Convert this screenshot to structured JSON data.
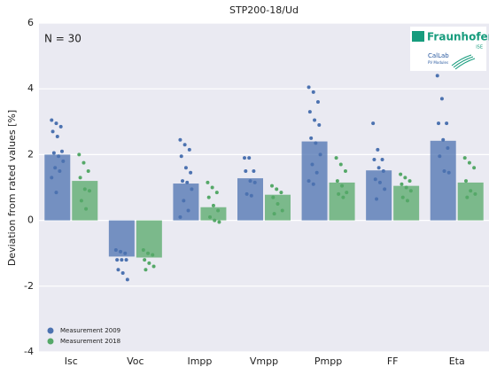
{
  "chart_data": {
    "type": "bar",
    "title": "STP200-18/Ud",
    "y_label": "Deviation from rated values [%]",
    "annotation": "N = 30",
    "logo": {
      "name": "Fraunhofer",
      "sub": "ISE",
      "lab": "CalLab",
      "lab_sub": "PV Modules"
    },
    "categories": [
      "Isc",
      "Voc",
      "Impp",
      "Vmpp",
      "Pmpp",
      "FF",
      "Eta"
    ],
    "ylim": [
      -4,
      6
    ],
    "yticks": [
      -4,
      -2,
      0,
      2,
      4,
      6
    ],
    "grid": true,
    "legend": "lower left",
    "series": [
      {
        "name": "Measurement 2009",
        "color": "#4c72b0",
        "values": [
          2.0,
          -1.1,
          1.12,
          1.28,
          2.4,
          1.52,
          2.42
        ],
        "points": [
          [
            3.05,
            2.95,
            2.85,
            2.7,
            2.55,
            2.1,
            2.05,
            1.95,
            1.8,
            1.6,
            1.5,
            1.3,
            0.85
          ],
          [
            -0.9,
            -0.95,
            -1.0,
            -1.2,
            -1.2,
            -1.2,
            -1.5,
            -1.6,
            -1.8
          ],
          [
            2.45,
            2.3,
            2.15,
            1.95,
            1.6,
            1.45,
            1.2,
            1.15,
            0.95,
            0.6,
            0.3,
            0.1
          ],
          [
            1.9,
            1.9,
            1.5,
            1.5,
            1.2,
            1.15,
            0.8,
            0.75
          ],
          [
            4.05,
            3.9,
            3.6,
            3.3,
            3.05,
            2.9,
            2.5,
            2.35,
            2.0,
            1.7,
            1.45,
            1.2,
            1.1
          ],
          [
            2.95,
            2.15,
            1.85,
            1.85,
            1.6,
            1.5,
            1.25,
            1.15,
            0.95,
            0.65
          ],
          [
            4.4,
            3.7,
            2.95,
            2.95,
            2.45,
            2.2,
            1.95,
            1.5,
            1.45
          ]
        ]
      },
      {
        "name": "Measurement 2018",
        "color": "#55a868",
        "values": [
          1.2,
          -1.13,
          0.4,
          0.78,
          1.15,
          1.05,
          1.15
        ],
        "points": [
          [
            2.0,
            1.75,
            1.5,
            1.3,
            0.95,
            0.9,
            0.6,
            0.35
          ],
          [
            -0.9,
            -1.0,
            -1.05,
            -1.2,
            -1.3,
            -1.4,
            -1.5
          ],
          [
            1.15,
            1.0,
            0.85,
            0.7,
            0.45,
            0.3,
            0.1,
            0.0,
            -0.05
          ],
          [
            1.05,
            0.95,
            0.85,
            0.7,
            0.5,
            0.3,
            0.2
          ],
          [
            1.9,
            1.7,
            1.5,
            1.2,
            1.05,
            0.85,
            0.8,
            0.7
          ],
          [
            1.4,
            1.3,
            1.2,
            1.1,
            1.0,
            0.9,
            0.7,
            0.6
          ],
          [
            1.9,
            1.75,
            1.6,
            1.2,
            0.9,
            0.8,
            0.7
          ]
        ]
      }
    ]
  }
}
